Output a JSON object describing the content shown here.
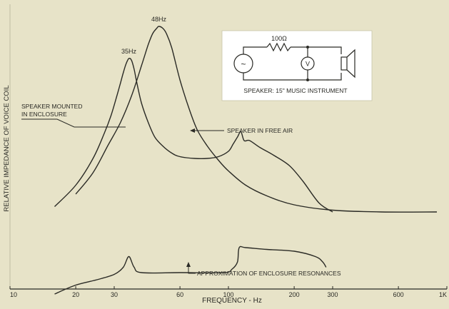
{
  "chart_data": {
    "type": "line",
    "x_scale": "log",
    "xlim": [
      10,
      1000
    ],
    "xlabel": "FREQUENCY - Hz",
    "ylabel": "RELATIVE IMPEDANCE OF VOICE COIL",
    "x_ticks": [
      {
        "value": 10,
        "label": "10"
      },
      {
        "value": 20,
        "label": "20"
      },
      {
        "value": 30,
        "label": "30"
      },
      {
        "value": 60,
        "label": "60"
      },
      {
        "value": 100,
        "label": "100"
      },
      {
        "value": 200,
        "label": "200"
      },
      {
        "value": 300,
        "label": "300"
      },
      {
        "value": 600,
        "label": "600"
      },
      {
        "value": 1000,
        "label": "1K"
      }
    ],
    "grid": false,
    "legend": "none",
    "series": [
      {
        "name": "SPEAKER MOUNTED IN ENCLOSURE",
        "relative": true,
        "x": [
          16,
          20,
          24,
          27,
          29,
          31,
          32,
          33,
          34,
          35,
          36,
          37,
          38,
          40,
          43,
          46,
          50,
          55,
          60,
          70,
          80,
          90,
          100,
          105,
          110,
          114,
          118,
          125,
          140,
          160,
          190,
          220,
          260,
          300
        ],
        "y": [
          13,
          25,
          40,
          54,
          64,
          76,
          82,
          88,
          93,
          96,
          95,
          90,
          83,
          71,
          60,
          52,
          47,
          43,
          41,
          40,
          40,
          41,
          44,
          48,
          52,
          55,
          50,
          50,
          46,
          42,
          36,
          27,
          15,
          10
        ]
      },
      {
        "name": "SPEAKER IN FREE AIR",
        "relative": true,
        "x": [
          20,
          24,
          28,
          32,
          36,
          40,
          43,
          45,
          47,
          48,
          50,
          52,
          55,
          60,
          66,
          72,
          80,
          90,
          100,
          120,
          150,
          200,
          300,
          500,
          900
        ],
        "y": [
          20,
          32,
          47,
          60,
          75,
          92,
          104,
          110,
          113,
          114,
          113,
          110,
          102,
          84,
          68,
          56,
          47,
          39,
          33,
          25,
          19,
          14,
          11,
          10,
          10
        ]
      },
      {
        "name": "APPROXIMATION OF ENCLOSURE RESONANCES",
        "relative": true,
        "x": [
          16,
          20,
          25,
          30,
          33,
          35,
          37,
          40,
          60,
          95,
          104,
          110,
          112,
          120,
          150,
          200,
          250,
          270,
          280
        ],
        "y": [
          -36,
          -31,
          -28,
          -25,
          -21,
          -15,
          -21,
          -24,
          -24,
          -24,
          -22,
          -18,
          -10,
          -10,
          -11,
          -12,
          -15,
          -18,
          -21
        ]
      }
    ],
    "annotations": [
      {
        "text": "35Hz",
        "x": 35
      },
      {
        "text": "48Hz",
        "x": 48
      },
      {
        "text": "SPEAKER MOUNTED",
        "line2": "IN ENCLOSURE"
      },
      {
        "text": "SPEAKER IN FREE AIR"
      },
      {
        "text": "APPROXIMATION OF ENCLOSURE RESONANCES"
      }
    ],
    "inset": {
      "resistor": "100Ω",
      "source_symbol": "~",
      "meter_symbol": "V",
      "caption": "SPEAKER: 15\" MUSIC INSTRUMENT"
    }
  }
}
